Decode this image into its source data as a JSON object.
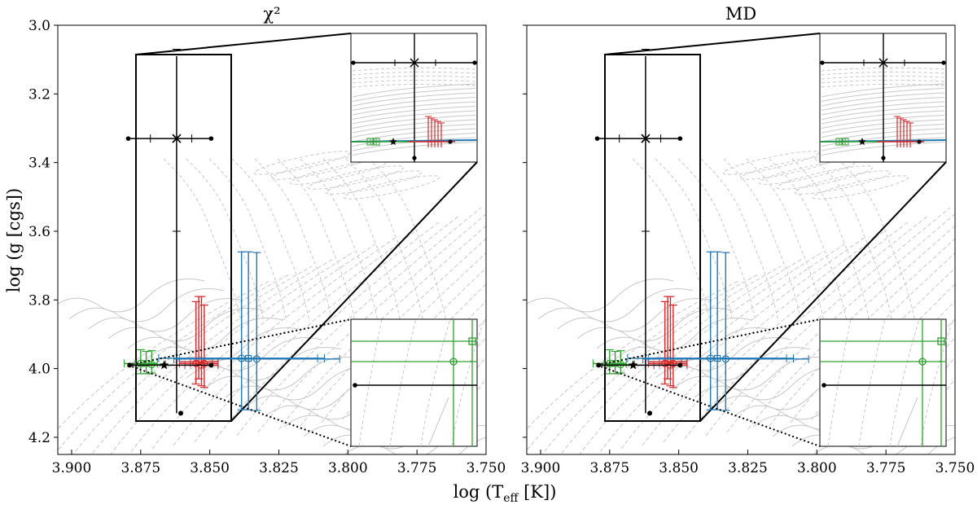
{
  "figure": {
    "xlabel": "log (T",
    "xlabel_sub": "eff",
    "xlabel_unit": " [K])",
    "ylabel": "log (g [cgs])"
  },
  "colors": {
    "observed": "#000000",
    "red": "#d62728",
    "blue": "#1f77b4",
    "green": "#2ca02c",
    "orange": "#ff7f0e",
    "tracks": "#c8c8c8",
    "frame": "#000000"
  },
  "chart_data": [
    {
      "type": "scatter",
      "title": "χ²",
      "xlabel": "log (T_eff [K])",
      "ylabel": "log (g [cgs])",
      "xlim": [
        3.905,
        3.75
      ],
      "ylim": [
        4.25,
        3.0
      ],
      "x_ticks": [
        "3.900",
        "3.875",
        "3.850",
        "3.825",
        "3.800",
        "3.775",
        "3.750"
      ],
      "x_tick_values": [
        3.9,
        3.875,
        3.85,
        3.825,
        3.8,
        3.775,
        3.75
      ],
      "y_ticks": [
        "3.0",
        "3.2",
        "3.4",
        "3.6",
        "3.8",
        "4.0",
        "4.2"
      ],
      "y_tick_values": [
        3.0,
        3.2,
        3.4,
        3.6,
        3.8,
        4.0,
        4.2
      ],
      "observed": {
        "teff": 3.862,
        "logg": 3.99,
        "teff_err": [
          0.015,
          0.0105
        ],
        "logg_err": [
          0.12,
          0.14
        ]
      },
      "series": [
        {
          "name": "red",
          "color": "#d62728",
          "points": [
            {
              "x": 3.855,
              "y": 3.985,
              "xerr": 0.006,
              "yerr_up": 0.18,
              "yerr_dn": 0.06
            },
            {
              "x": 3.853,
              "y": 3.99,
              "xerr": 0.006,
              "yerr_up": 0.2,
              "yerr_dn": 0.06
            },
            {
              "x": 3.852,
              "y": 3.985,
              "xerr": 0.005,
              "yerr_up": 0.17,
              "yerr_dn": 0.07
            },
            {
              "x": 3.854,
              "y": 3.98,
              "xerr": 0.007,
              "yerr_up": 0.19,
              "yerr_dn": 0.05
            }
          ]
        },
        {
          "name": "blue",
          "color": "#1f77b4",
          "points": [
            {
              "x": 3.8385,
              "y": 3.97,
              "xerr": 0.03,
              "yerr_up": 0.31,
              "yerr_dn": 0.15
            },
            {
              "x": 3.836,
              "y": 3.97,
              "xerr": 0.025,
              "yerr_up": 0.31,
              "yerr_dn": 0.15
            },
            {
              "x": 3.833,
              "y": 3.972,
              "xerr": 0.03,
              "yerr_up": 0.31,
              "yerr_dn": 0.15
            }
          ]
        },
        {
          "name": "green",
          "color": "#2ca02c",
          "points": [
            {
              "x": 3.875,
              "y": 3.985,
              "xerr": 0.006,
              "yerr_up": 0.04,
              "yerr_dn": 0.03
            },
            {
              "x": 3.873,
              "y": 3.985,
              "xerr": 0.004,
              "yerr_up": 0.035,
              "yerr_dn": 0.03
            },
            {
              "x": 3.871,
              "y": 3.988,
              "xerr": 0.005,
              "yerr_up": 0.04,
              "yerr_dn": 0.025
            }
          ]
        }
      ],
      "black_markers": [
        {
          "x": 3.879,
          "y": 3.99,
          "marker": "dot"
        },
        {
          "x": 3.8665,
          "y": 3.99,
          "marker": "star"
        },
        {
          "x": 3.8495,
          "y": 3.99,
          "marker": "dot"
        },
        {
          "x": 3.8605,
          "y": 4.13,
          "marker": "dot"
        }
      ]
    },
    {
      "type": "scatter",
      "title": "MD",
      "xlabel": "log (T_eff [K])",
      "ylabel": "log (g [cgs])",
      "xlim": [
        3.905,
        3.75
      ],
      "ylim": [
        4.25,
        3.0
      ],
      "x_ticks": [
        "3.900",
        "3.875",
        "3.850",
        "3.825",
        "3.800",
        "3.775",
        "3.750"
      ],
      "x_tick_values": [
        3.9,
        3.875,
        3.85,
        3.825,
        3.8,
        3.775,
        3.75
      ],
      "y_tick_values": [
        3.0,
        3.2,
        3.4,
        3.6,
        3.8,
        4.0,
        4.2
      ],
      "observed": {
        "teff": 3.862,
        "logg": 3.99,
        "teff_err": [
          0.015,
          0.0105
        ],
        "logg_err": [
          0.12,
          0.14
        ]
      },
      "series": [
        {
          "name": "red",
          "color": "#d62728",
          "points": [
            {
              "x": 3.855,
              "y": 3.985,
              "xerr": 0.006,
              "yerr_up": 0.18,
              "yerr_dn": 0.06
            },
            {
              "x": 3.853,
              "y": 3.99,
              "xerr": 0.006,
              "yerr_up": 0.2,
              "yerr_dn": 0.06
            },
            {
              "x": 3.852,
              "y": 3.985,
              "xerr": 0.005,
              "yerr_up": 0.17,
              "yerr_dn": 0.07
            },
            {
              "x": 3.854,
              "y": 3.98,
              "xerr": 0.007,
              "yerr_up": 0.19,
              "yerr_dn": 0.05
            }
          ]
        },
        {
          "name": "blue",
          "color": "#1f77b4",
          "points": [
            {
              "x": 3.8385,
              "y": 3.97,
              "xerr": 0.03,
              "yerr_up": 0.31,
              "yerr_dn": 0.15
            },
            {
              "x": 3.836,
              "y": 3.97,
              "xerr": 0.025,
              "yerr_up": 0.31,
              "yerr_dn": 0.15
            },
            {
              "x": 3.833,
              "y": 3.972,
              "xerr": 0.03,
              "yerr_up": 0.31,
              "yerr_dn": 0.15
            }
          ]
        },
        {
          "name": "green",
          "color": "#2ca02c",
          "points": [
            {
              "x": 3.875,
              "y": 3.985,
              "xerr": 0.006,
              "yerr_up": 0.04,
              "yerr_dn": 0.03
            },
            {
              "x": 3.873,
              "y": 3.985,
              "xerr": 0.004,
              "yerr_up": 0.035,
              "yerr_dn": 0.03
            },
            {
              "x": 3.871,
              "y": 3.988,
              "xerr": 0.005,
              "yerr_up": 0.04,
              "yerr_dn": 0.025
            }
          ]
        }
      ],
      "black_markers": [
        {
          "x": 3.879,
          "y": 3.99,
          "marker": "dot"
        },
        {
          "x": 3.8665,
          "y": 3.99,
          "marker": "star"
        },
        {
          "x": 3.8495,
          "y": 3.99,
          "marker": "dot"
        },
        {
          "x": 3.8605,
          "y": 4.13,
          "marker": "dot"
        }
      ]
    }
  ]
}
